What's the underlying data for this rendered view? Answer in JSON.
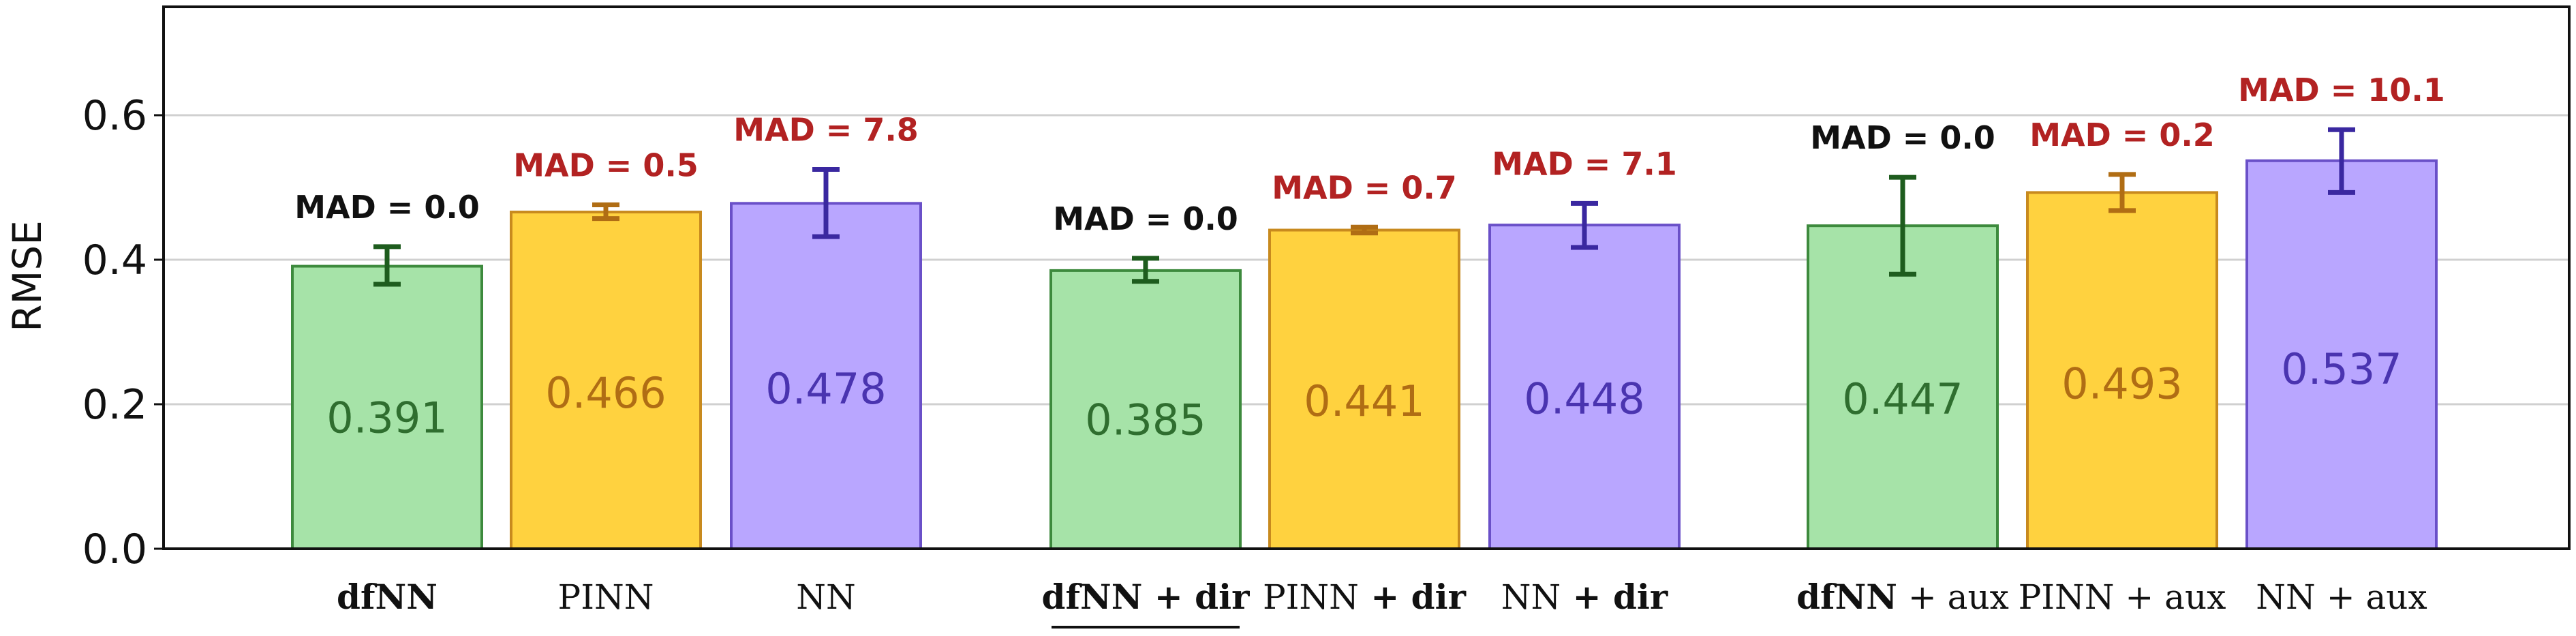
{
  "chart_data": {
    "type": "bar",
    "ylabel": "RMSE",
    "ylim": [
      0.0,
      0.75
    ],
    "yticks": [
      "0.0",
      "0.2",
      "0.4",
      "0.6"
    ],
    "grid": true,
    "bars": [
      {
        "label_main": "dfNN",
        "label_suffix": "",
        "main_bold": true,
        "suffix_bold": false,
        "underline": false,
        "value": 0.391,
        "value_label": "0.391",
        "err_low": 0.366,
        "err_high": 0.418,
        "mad_label": "MAD = 0.0",
        "mad_color": "#111111",
        "fill": "#a6e3a8",
        "stroke": "#3d8a3d",
        "text_color": "#2f6e2f",
        "err_color": "#1e5c1e"
      },
      {
        "label_main": "PINN",
        "label_suffix": "",
        "main_bold": false,
        "suffix_bold": false,
        "underline": false,
        "value": 0.466,
        "value_label": "0.466",
        "err_low": 0.457,
        "err_high": 0.476,
        "mad_label": "MAD = 0.5",
        "mad_color": "#b22222",
        "fill": "#ffd23f",
        "stroke": "#c88a1e",
        "text_color": "#b06d14",
        "err_color": "#b06d14"
      },
      {
        "label_main": "NN",
        "label_suffix": "",
        "main_bold": false,
        "suffix_bold": false,
        "underline": false,
        "value": 0.478,
        "value_label": "0.478",
        "err_low": 0.432,
        "err_high": 0.525,
        "mad_label": "MAD = 7.8",
        "mad_color": "#b22222",
        "fill": "#b9a6ff",
        "stroke": "#6a50c8",
        "text_color": "#4a34b0",
        "err_color": "#3a28a0"
      },
      {
        "label_main": "dfNN",
        "label_suffix": " + dir",
        "main_bold": true,
        "suffix_bold": true,
        "underline": true,
        "value": 0.385,
        "value_label": "0.385",
        "err_low": 0.37,
        "err_high": 0.402,
        "mad_label": "MAD = 0.0",
        "mad_color": "#111111",
        "fill": "#a6e3a8",
        "stroke": "#3d8a3d",
        "text_color": "#2f6e2f",
        "err_color": "#1e5c1e"
      },
      {
        "label_main": "PINN",
        "label_suffix": " + dir",
        "main_bold": false,
        "suffix_bold": true,
        "underline": false,
        "value": 0.441,
        "value_label": "0.441",
        "err_low": 0.437,
        "err_high": 0.445,
        "mad_label": "MAD = 0.7",
        "mad_color": "#b22222",
        "fill": "#ffd23f",
        "stroke": "#c88a1e",
        "text_color": "#b06d14",
        "err_color": "#b06d14"
      },
      {
        "label_main": "NN",
        "label_suffix": " + dir",
        "main_bold": false,
        "suffix_bold": true,
        "underline": false,
        "value": 0.448,
        "value_label": "0.448",
        "err_low": 0.417,
        "err_high": 0.478,
        "mad_label": "MAD = 7.1",
        "mad_color": "#b22222",
        "fill": "#b9a6ff",
        "stroke": "#6a50c8",
        "text_color": "#4a34b0",
        "err_color": "#3a28a0"
      },
      {
        "label_main": "dfNN",
        "label_suffix": " + aux",
        "main_bold": true,
        "suffix_bold": false,
        "underline": false,
        "value": 0.447,
        "value_label": "0.447",
        "err_low": 0.38,
        "err_high": 0.514,
        "mad_label": "MAD = 0.0",
        "mad_color": "#111111",
        "fill": "#a6e3a8",
        "stroke": "#3d8a3d",
        "text_color": "#2f6e2f",
        "err_color": "#1e5c1e"
      },
      {
        "label_main": "PINN",
        "label_suffix": " + aux",
        "main_bold": false,
        "suffix_bold": false,
        "underline": false,
        "value": 0.493,
        "value_label": "0.493",
        "err_low": 0.468,
        "err_high": 0.518,
        "mad_label": "MAD = 0.2",
        "mad_color": "#b22222",
        "fill": "#ffd23f",
        "stroke": "#c88a1e",
        "text_color": "#b06d14",
        "err_color": "#b06d14"
      },
      {
        "label_main": "NN",
        "label_suffix": " + aux",
        "main_bold": false,
        "suffix_bold": false,
        "underline": false,
        "value": 0.537,
        "value_label": "0.537",
        "err_low": 0.493,
        "err_high": 0.58,
        "mad_label": "MAD = 10.1",
        "mad_color": "#b22222",
        "fill": "#b9a6ff",
        "stroke": "#6a50c8",
        "text_color": "#4a34b0",
        "err_color": "#3a28a0"
      }
    ]
  }
}
